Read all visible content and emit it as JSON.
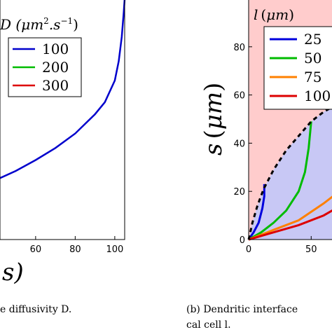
{
  "chart_data": [
    {
      "type": "line",
      "panel": "left",
      "xlabel": "s",
      "ylabel": "",
      "x_ticks": [
        "60",
        "80",
        "100"
      ],
      "xlim": [
        42,
        105
      ],
      "ylim": [
        0,
        1
      ],
      "legend_title": "D (μm².s⁻¹)",
      "legend": [
        "100",
        "200",
        "300"
      ],
      "series": [
        {
          "name": "100",
          "color": "#0000cc",
          "x": [
            42,
            50,
            60,
            70,
            80,
            90,
            95,
            100,
            102,
            103.5,
            104.5,
            105
          ],
          "y": [
            0.255,
            0.285,
            0.33,
            0.38,
            0.44,
            0.52,
            0.57,
            0.66,
            0.74,
            0.84,
            0.94,
            1.0
          ]
        }
      ],
      "caption": "e diffusivity D."
    },
    {
      "type": "line",
      "panel": "right",
      "xlabel": "",
      "ylabel": "s (μm)",
      "x_ticks": [
        "0",
        "50"
      ],
      "y_ticks": [
        "0",
        "20",
        "40",
        "60",
        "80"
      ],
      "xlim": [
        0,
        70
      ],
      "ylim": [
        0,
        100
      ],
      "legend_title": "l (μm)",
      "legend": [
        "25",
        "50",
        "75",
        "100"
      ],
      "boundary": {
        "style": "dashed",
        "x": [
          0,
          3,
          7,
          12,
          20,
          30,
          40,
          50,
          60,
          70
        ],
        "y": [
          0,
          7,
          14,
          21,
          29,
          37,
          43,
          49,
          53,
          56
        ]
      },
      "series": [
        {
          "name": "25",
          "color": "#0000dd",
          "x": [
            0,
            4,
            8,
            11,
            12.5,
            12.5
          ],
          "y": [
            0,
            3,
            7,
            13,
            18,
            23
          ]
        },
        {
          "name": "50",
          "color": "#00bb00",
          "x": [
            0,
            10,
            20,
            30,
            40,
            45,
            48,
            50
          ],
          "y": [
            0,
            3,
            7,
            12,
            20,
            28,
            38,
            49
          ]
        },
        {
          "name": "75",
          "color": "#ff8000",
          "x": [
            0,
            20,
            40,
            60,
            70
          ],
          "y": [
            0,
            4,
            8,
            15,
            19
          ]
        },
        {
          "name": "100",
          "color": "#dd0000",
          "x": [
            0,
            20,
            40,
            60,
            70
          ],
          "y": [
            0,
            3,
            6,
            10,
            13
          ]
        }
      ],
      "caption_line1": "(b) Dendritic interface",
      "caption_line2": "cal cell l."
    }
  ]
}
